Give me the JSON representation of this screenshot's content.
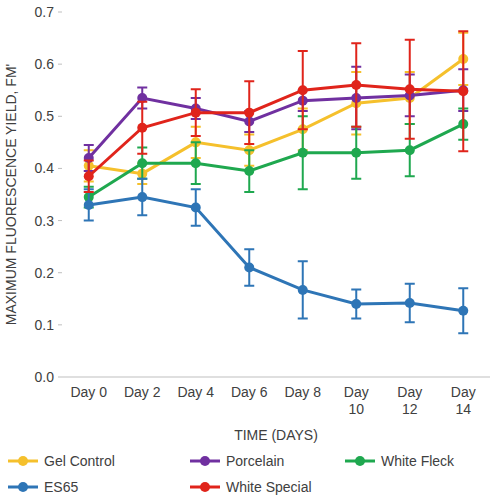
{
  "chart_data": {
    "type": "line",
    "y_label": "MAXIMUM FLUORESCENCE YIELD, FM'",
    "x_label": "TIME (DAYS)",
    "categories": [
      "Day 0",
      "Day 2",
      "Day 4",
      "Day 6",
      "Day 8",
      "Day 10",
      "Day 12",
      "Day 14"
    ],
    "ylim": [
      0,
      0.7
    ],
    "yticks": [
      {
        "value": 0,
        "label": "0.0"
      },
      {
        "value": 0.1,
        "label": "0.1"
      },
      {
        "value": 0.2,
        "label": "0.2"
      },
      {
        "value": 0.3,
        "label": "0.3"
      },
      {
        "value": 0.4,
        "label": "0.4"
      },
      {
        "value": 0.5,
        "label": "0.5"
      },
      {
        "value": 0.6,
        "label": "0.6"
      },
      {
        "value": 0.7,
        "label": "0.7"
      }
    ],
    "grid": false,
    "legend": "bottom",
    "marker": "circle",
    "series": [
      {
        "name": "Gel Control",
        "color": "#f5c02c",
        "values": [
          0.405,
          0.39,
          0.45,
          0.435,
          0.475,
          0.525,
          0.535,
          0.61
        ],
        "errors": [
          0.03,
          0.02,
          0.03,
          0.03,
          0.04,
          0.06,
          0.05,
          0.05
        ]
      },
      {
        "name": "Porcelain",
        "color": "#7030a0",
        "values": [
          0.42,
          0.535,
          0.515,
          0.49,
          0.53,
          0.535,
          0.54,
          0.55
        ],
        "errors": [
          0.025,
          0.02,
          0.02,
          0.02,
          0.02,
          0.06,
          0.04,
          0.04
        ]
      },
      {
        "name": "White Fleck",
        "color": "#1fa84f",
        "values": [
          0.345,
          0.41,
          0.41,
          0.395,
          0.43,
          0.43,
          0.435,
          0.485
        ],
        "errors": [
          0.02,
          0.03,
          0.04,
          0.04,
          0.07,
          0.05,
          0.05,
          0.03
        ]
      },
      {
        "name": "ES65",
        "color": "#2e75b6",
        "values": [
          0.33,
          0.345,
          0.325,
          0.21,
          0.167,
          0.14,
          0.142,
          0.127
        ],
        "errors": [
          0.03,
          0.035,
          0.035,
          0.035,
          0.055,
          0.028,
          0.037,
          0.043
        ]
      },
      {
        "name": "White Special",
        "color": "#e0241b",
        "values": [
          0.385,
          0.478,
          0.507,
          0.507,
          0.55,
          0.56,
          0.552,
          0.548
        ],
        "errors": [
          0.03,
          0.05,
          0.045,
          0.06,
          0.075,
          0.08,
          0.095,
          0.115
        ]
      }
    ]
  }
}
